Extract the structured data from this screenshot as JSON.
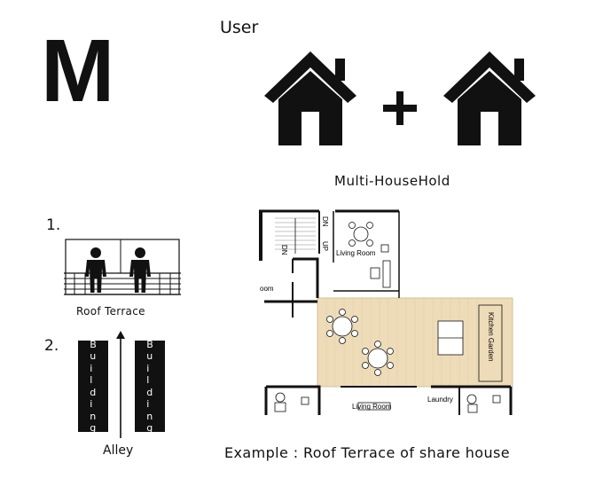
{
  "logo_letter": "M",
  "user_label": "User",
  "plus_symbol": "+",
  "household_label": "Multi-HouseHold",
  "item1": {
    "number": "1.",
    "caption": "Roof Terrace"
  },
  "item2": {
    "number": "2.",
    "building_left": "Building",
    "building_right": "Building",
    "caption": "Alley"
  },
  "floorplan": {
    "living_room_top": "Living Room",
    "living_room_bottom": "Living Room",
    "room_cut": "oom",
    "kitchen_garden": "Kitchen Garden",
    "laundry": "Laundry",
    "stair_dn_1": "DN",
    "stair_dn_2": "DN",
    "stair_up": "UP"
  },
  "example_caption": "Example : Roof Terrace of share house",
  "colors": {
    "terrace_fill": "#eedcb9",
    "ink": "#111111"
  }
}
